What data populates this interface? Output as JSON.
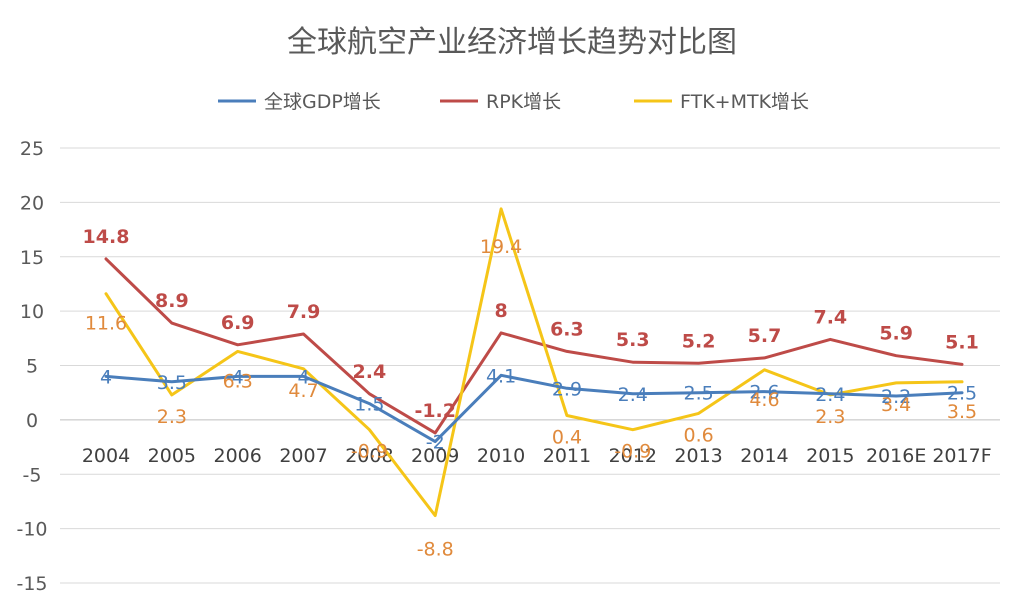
{
  "chart_data": {
    "type": "line",
    "title": "全球航空产业经济增长趋势对比图",
    "categories": [
      "2004",
      "2005",
      "2006",
      "2007",
      "2008",
      "2009",
      "2010",
      "2011",
      "2012",
      "2013",
      "2014",
      "2015",
      "2016E",
      "2017F"
    ],
    "ylim": [
      -15,
      25
    ],
    "yticks": [
      -15,
      -10,
      -5,
      0,
      5,
      10,
      15,
      20,
      25
    ],
    "grid": true,
    "legend_position": "top",
    "series": [
      {
        "name": "全球GDP增长",
        "color": "#4a7ebb",
        "values": [
          4,
          3.5,
          4,
          4,
          1.5,
          -2,
          4.1,
          2.9,
          2.4,
          2.5,
          2.6,
          2.4,
          2.2,
          2.5
        ]
      },
      {
        "name": "RPK增长",
        "color": "#be4b48",
        "values": [
          14.8,
          8.9,
          6.9,
          7.9,
          2.4,
          -1.2,
          8,
          6.3,
          5.3,
          5.2,
          5.7,
          7.4,
          5.9,
          5.1
        ]
      },
      {
        "name": "FTK+MTK增长",
        "color": "#f5c518",
        "label_color": "#e08a3c",
        "values": [
          11.6,
          2.3,
          6.3,
          4.7,
          -0.9,
          -8.8,
          19.4,
          0.4,
          -0.9,
          0.6,
          4.6,
          2.3,
          3.4,
          3.5
        ]
      }
    ]
  }
}
